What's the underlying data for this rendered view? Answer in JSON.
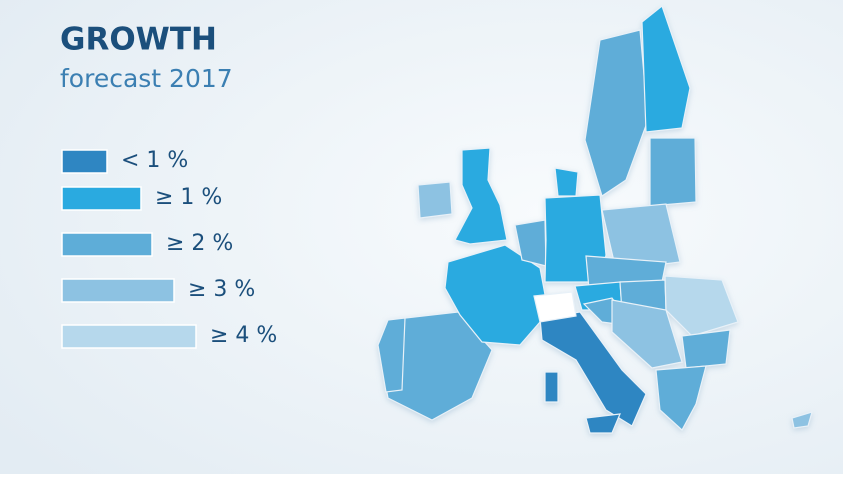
{
  "header": {
    "title": "GROWTH",
    "subtitle": "forecast 2017"
  },
  "legend": {
    "items": [
      {
        "label": "< 1 %",
        "color": "#2f86c2"
      },
      {
        "label": "≥ 1 %",
        "color": "#2aaae0"
      },
      {
        "label": "≥ 2 %",
        "color": "#5eadd8"
      },
      {
        "label": "≥ 3 %",
        "color": "#8dc2e2"
      },
      {
        "label": "≥ 4 %",
        "color": "#b6d8ec"
      }
    ]
  }
}
